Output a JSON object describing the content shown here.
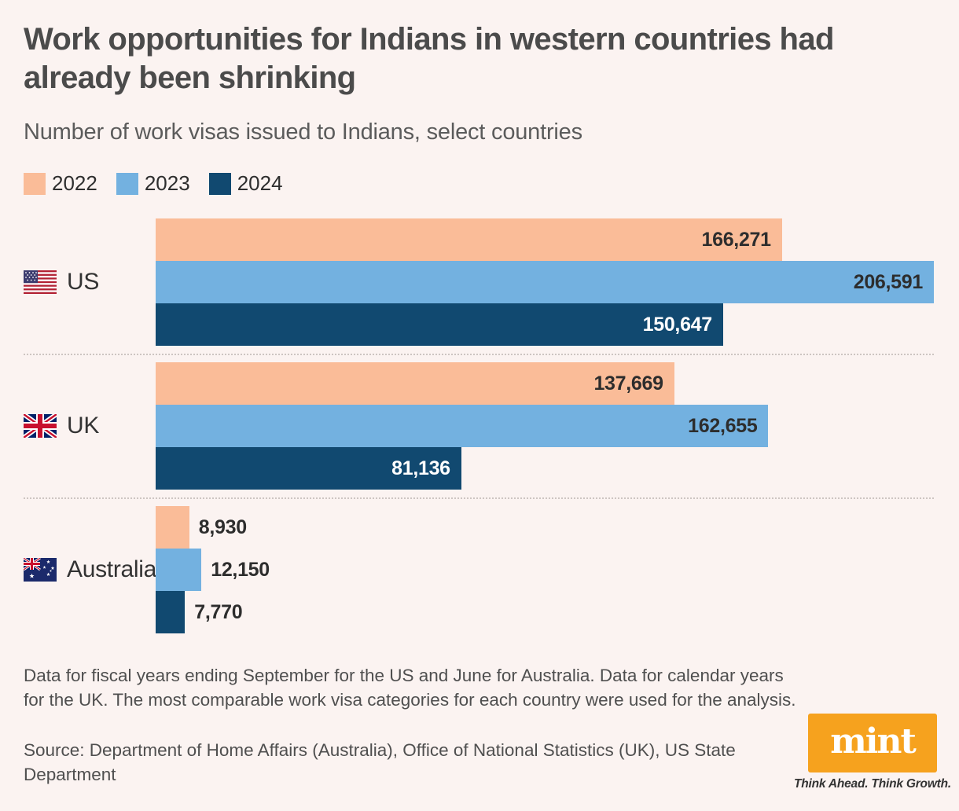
{
  "title": "Work opportunities for Indians in western countries had already been shrinking",
  "subtitle": "Number of work visas issued to Indians, select countries",
  "background_color": "#FBF3F1",
  "chart_data": {
    "type": "bar",
    "orientation": "horizontal",
    "title": "Work opportunities for Indians in western countries had already been shrinking",
    "subtitle": "Number of work visas issued to Indians, select countries",
    "categories": [
      "US",
      "UK",
      "Australia"
    ],
    "flag_ids": [
      "us",
      "uk",
      "au"
    ],
    "series": [
      {
        "name": "2022",
        "color": "#FABC98",
        "text_color": "#2D2D2D",
        "values": [
          166271,
          137669,
          8930
        ],
        "labels": [
          "166,271",
          "137,669",
          "8,930"
        ]
      },
      {
        "name": "2023",
        "color": "#73B1E0",
        "text_color": "#2D2D2D",
        "values": [
          206591,
          162655,
          12150
        ],
        "labels": [
          "206,591",
          "162,655",
          "12,150"
        ]
      },
      {
        "name": "2024",
        "color": "#114970",
        "text_color": "#FFFFFF",
        "values": [
          150647,
          81136,
          7770
        ],
        "labels": [
          "150,647",
          "81,136",
          "7,770"
        ]
      }
    ],
    "x_max": 206591,
    "grid": false,
    "legend_position": "top",
    "bar_label_outside_threshold_pct": 15,
    "row_divider_style": "dotted"
  },
  "footnote": {
    "text": "Data for fiscal years ending September for the US and June for Australia. Data for calendar years for the UK. The most comparable work visa categories for each country were used for the analysis."
  },
  "source": {
    "text": "Source: Department of Home Affairs (Australia), Office of National Statistics (UK), US State Department"
  },
  "logo": {
    "wordmark": "mint",
    "tagline": "Think Ahead. Think Growth.",
    "background_color": "#F6A21E"
  }
}
